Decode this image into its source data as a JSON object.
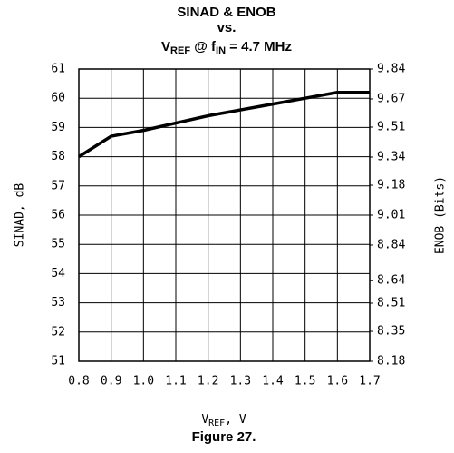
{
  "chart_data": {
    "type": "line",
    "title": [
      "SINAD & ENOB",
      "vs."
    ],
    "title_line3": [
      "V",
      "REF",
      " @ f",
      "IN",
      " = 4.7 MHz"
    ],
    "x_label": [
      "V",
      "REF",
      ", V"
    ],
    "y_label": "SINAD, dB",
    "y2_label": "ENOB (Bits)",
    "caption": "Figure 27.",
    "x": [
      0.8,
      0.9,
      1.0,
      1.1,
      1.2,
      1.3,
      1.4,
      1.5,
      1.6,
      1.7
    ],
    "series": [
      {
        "name": "SINAD",
        "color": "#000000",
        "values": [
          58,
          58.7,
          58.9,
          59.15,
          59.4,
          59.6,
          59.8,
          60.0,
          60.2,
          60.2
        ]
      }
    ],
    "xlim": [
      0.8,
      1.7
    ],
    "xticks": [
      0.8,
      0.9,
      {
        "value": 1,
        "label": "1.0"
      },
      1.1,
      1.2,
      1.3,
      1.4,
      1.5,
      1.6,
      1.7
    ],
    "ylim": [
      51,
      61
    ],
    "yticks": [
      51,
      52,
      53,
      54,
      55,
      56,
      57,
      58,
      59,
      60,
      61
    ],
    "y2lim": [
      8.18,
      9.84
    ],
    "y2ticks": [
      8.18,
      8.35,
      8.51,
      8.64,
      8.84,
      9.01,
      9.18,
      9.34,
      9.51,
      9.67,
      9.84
    ],
    "grid": true
  }
}
